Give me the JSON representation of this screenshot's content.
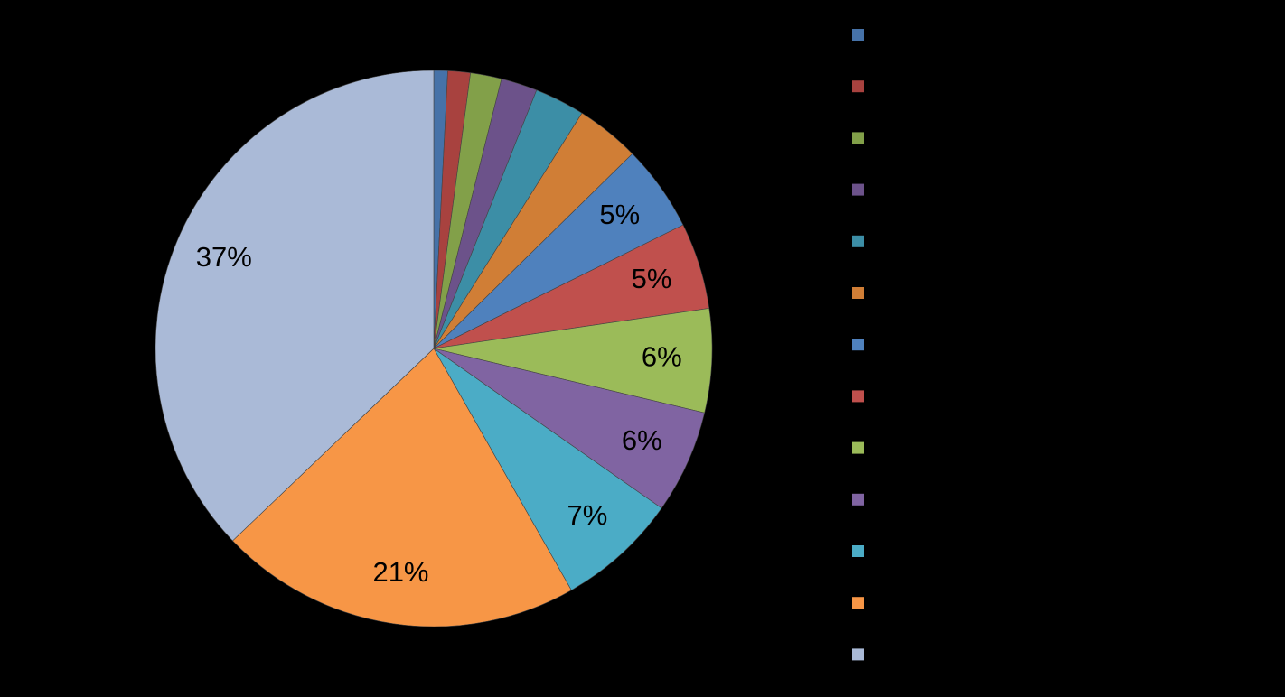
{
  "chart_data": {
    "type": "pie",
    "values": [
      0.8,
      1.3,
      1.8,
      2.1,
      2.9,
      3.7,
      5,
      5,
      6,
      6,
      7,
      21,
      37
    ],
    "value_labels": [
      null,
      null,
      null,
      null,
      null,
      null,
      "5%",
      "5%",
      "6%",
      "6%",
      "7%",
      "21%",
      "37%"
    ],
    "colors": [
      "#4672a8",
      "#a8423f",
      "#82a049",
      "#6c528a",
      "#3c8ea6",
      "#d07e36",
      "#4f81bd",
      "#c0504d",
      "#9bbb59",
      "#8064a2",
      "#4bacc6",
      "#f79646",
      "#aabad7"
    ]
  }
}
